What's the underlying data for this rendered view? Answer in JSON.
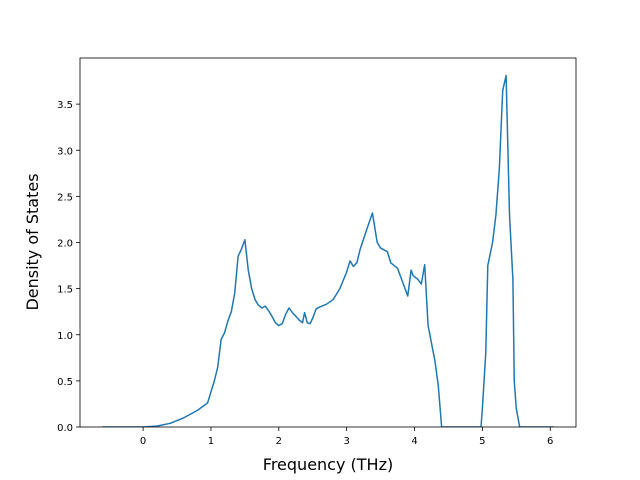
{
  "chart_data": {
    "type": "line",
    "x_label": "Frequency (THz)",
    "y_label": "Density of States",
    "xlim": [
      -0.93,
      6.38
    ],
    "ylim": [
      0,
      4.0
    ],
    "xticks": [
      0,
      1,
      2,
      3,
      4,
      5,
      6
    ],
    "yticks": [
      {
        "value": 0,
        "label": "0.0"
      },
      0.5,
      {
        "value": 1,
        "label": "1.0"
      },
      1.5,
      {
        "value": 2,
        "label": "2.0"
      },
      2.5,
      {
        "value": 3,
        "label": "3.0"
      },
      3.5
    ],
    "series": [
      {
        "color": "#1f77b4",
        "x": [
          -0.6,
          0,
          0.2,
          0.4,
          0.6,
          0.8,
          0.95,
          1.0,
          1.05,
          1.1,
          1.15,
          1.2,
          1.25,
          1.3,
          1.35,
          1.4,
          1.45,
          1.5,
          1.55,
          1.6,
          1.65,
          1.7,
          1.75,
          1.8,
          1.85,
          1.9,
          1.95,
          2.0,
          2.05,
          2.1,
          2.15,
          2.2,
          2.25,
          2.3,
          2.35,
          2.38,
          2.42,
          2.46,
          2.5,
          2.55,
          2.6,
          2.7,
          2.8,
          2.9,
          3.0,
          3.05,
          3.1,
          3.15,
          3.2,
          3.3,
          3.38,
          3.45,
          3.5,
          3.6,
          3.65,
          3.7,
          3.75,
          3.8,
          3.9,
          3.95,
          3.98,
          4.05,
          4.1,
          4.15,
          4.2,
          4.3,
          4.35,
          4.4,
          4.6,
          4.98,
          5.0,
          5.05,
          5.08,
          5.15,
          5.2,
          5.25,
          5.3,
          5.35,
          5.4,
          5.45,
          5.47,
          5.5,
          5.55,
          6.05
        ],
        "values": [
          0,
          0,
          0.01,
          0.04,
          0.1,
          0.18,
          0.26,
          0.38,
          0.5,
          0.65,
          0.95,
          1.02,
          1.15,
          1.25,
          1.45,
          1.85,
          1.93,
          2.03,
          1.7,
          1.5,
          1.38,
          1.32,
          1.29,
          1.31,
          1.26,
          1.2,
          1.13,
          1.1,
          1.12,
          1.22,
          1.29,
          1.24,
          1.2,
          1.16,
          1.13,
          1.24,
          1.13,
          1.12,
          1.18,
          1.28,
          1.3,
          1.33,
          1.38,
          1.5,
          1.68,
          1.8,
          1.74,
          1.78,
          1.93,
          2.15,
          2.32,
          2.0,
          1.94,
          1.9,
          1.78,
          1.75,
          1.72,
          1.62,
          1.42,
          1.7,
          1.64,
          1.6,
          1.55,
          1.76,
          1.1,
          0.72,
          0.45,
          0,
          0,
          0,
          0.2,
          0.8,
          1.75,
          2.0,
          2.3,
          2.8,
          3.65,
          3.81,
          2.3,
          1.6,
          0.5,
          0.2,
          0,
          0
        ]
      }
    ]
  }
}
